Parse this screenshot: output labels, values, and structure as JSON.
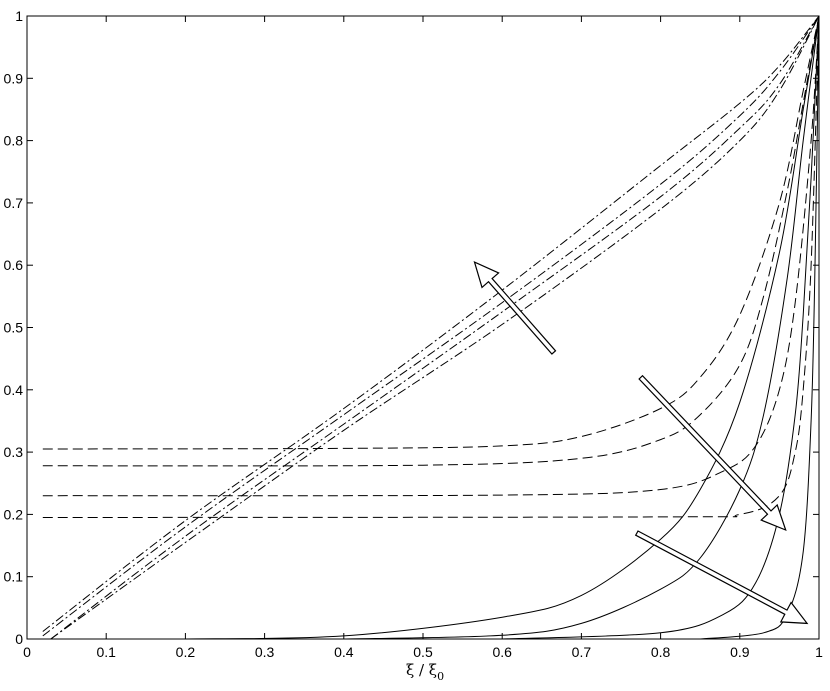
{
  "chart_data": {
    "type": "line",
    "title": "",
    "xlabel": "ξ / ξ",
    "xlabel_subscript": "0",
    "ylabel": "",
    "xlim": [
      0,
      1
    ],
    "ylim": [
      0,
      1
    ],
    "xticks": [
      "0",
      "0.1",
      "0.2",
      "0.3",
      "0.4",
      "0.5",
      "0.6",
      "0.7",
      "0.8",
      "0.9",
      "1"
    ],
    "yticks": [
      "0",
      "0.1",
      "0.2",
      "0.3",
      "0.4",
      "0.5",
      "0.6",
      "0.7",
      "0.8",
      "0.9",
      "1"
    ],
    "grid": false,
    "legend": "none",
    "series_groups": [
      {
        "style": "solid",
        "curves": [
          {
            "x": [
              0.2,
              0.4,
              0.6,
              0.7,
              0.8,
              0.85,
              0.9,
              0.95,
              0.98,
              1.0
            ],
            "y": [
              0.0,
              0.005,
              0.035,
              0.07,
              0.16,
              0.24,
              0.38,
              0.62,
              0.85,
              1.0
            ]
          },
          {
            "x": [
              0.4,
              0.6,
              0.7,
              0.8,
              0.85,
              0.9,
              0.93,
              0.96,
              0.98,
              1.0
            ],
            "y": [
              0.0,
              0.006,
              0.025,
              0.08,
              0.13,
              0.24,
              0.36,
              0.58,
              0.8,
              1.0
            ]
          },
          {
            "x": [
              0.6,
              0.8,
              0.88,
              0.92,
              0.95,
              0.97,
              0.98,
              0.99,
              1.0
            ],
            "y": [
              0.0,
              0.01,
              0.04,
              0.09,
              0.2,
              0.36,
              0.52,
              0.74,
              1.0
            ]
          },
          {
            "x": [
              0.85,
              0.93,
              0.96,
              0.98,
              0.99,
              0.995,
              1.0
            ],
            "y": [
              0.0,
              0.01,
              0.04,
              0.14,
              0.35,
              0.6,
              1.0
            ]
          }
        ]
      },
      {
        "style": "dashed",
        "curves": [
          {
            "x": [
              0.02,
              0.4,
              0.6,
              0.7,
              0.8,
              0.85,
              0.9,
              0.95,
              0.98,
              1.0
            ],
            "y": [
              0.305,
              0.306,
              0.31,
              0.325,
              0.37,
              0.42,
              0.52,
              0.7,
              0.88,
              1.0
            ]
          },
          {
            "x": [
              0.02,
              0.5,
              0.7,
              0.8,
              0.85,
              0.9,
              0.93,
              0.96,
              0.98,
              1.0
            ],
            "y": [
              0.278,
              0.279,
              0.29,
              0.32,
              0.36,
              0.44,
              0.55,
              0.72,
              0.86,
              1.0
            ]
          },
          {
            "x": [
              0.02,
              0.6,
              0.8,
              0.88,
              0.92,
              0.95,
              0.97,
              0.99,
              1.0
            ],
            "y": [
              0.23,
              0.231,
              0.24,
              0.27,
              0.31,
              0.4,
              0.54,
              0.8,
              1.0
            ]
          },
          {
            "x": [
              0.02,
              0.8,
              0.9,
              0.95,
              0.97,
              0.98,
              0.99,
              1.0
            ],
            "y": [
              0.195,
              0.196,
              0.2,
              0.23,
              0.3,
              0.4,
              0.6,
              1.0
            ]
          }
        ]
      },
      {
        "style": "dash-dot",
        "curves": [
          {
            "x": [
              0.02,
              0.2,
              0.4,
              0.6,
              0.8,
              0.9,
              0.95,
              1.0
            ],
            "y": [
              0.012,
              0.19,
              0.37,
              0.56,
              0.76,
              0.86,
              0.92,
              1.0
            ]
          },
          {
            "x": [
              0.02,
              0.2,
              0.4,
              0.6,
              0.8,
              0.9,
              0.95,
              1.0
            ],
            "y": [
              0.005,
              0.18,
              0.36,
              0.54,
              0.73,
              0.84,
              0.91,
              1.0
            ]
          },
          {
            "x": [
              0.03,
              0.2,
              0.4,
              0.6,
              0.8,
              0.9,
              0.95,
              1.0
            ],
            "y": [
              0.0,
              0.165,
              0.345,
              0.525,
              0.71,
              0.82,
              0.89,
              1.0
            ]
          },
          {
            "x": [
              0.03,
              0.2,
              0.4,
              0.6,
              0.8,
              0.9,
              0.95,
              1.0
            ],
            "y": [
              0.0,
              0.155,
              0.335,
              0.505,
              0.69,
              0.8,
              0.88,
              1.0
            ]
          }
        ]
      }
    ],
    "annotations": [
      {
        "type": "arrow",
        "from": [
          0.665,
          0.46
        ],
        "to": [
          0.565,
          0.605
        ]
      },
      {
        "type": "arrow",
        "from": [
          0.775,
          0.42
        ],
        "to": [
          0.958,
          0.175
        ]
      },
      {
        "type": "arrow",
        "from": [
          0.77,
          0.17
        ],
        "to": [
          0.985,
          0.025
        ]
      }
    ]
  }
}
